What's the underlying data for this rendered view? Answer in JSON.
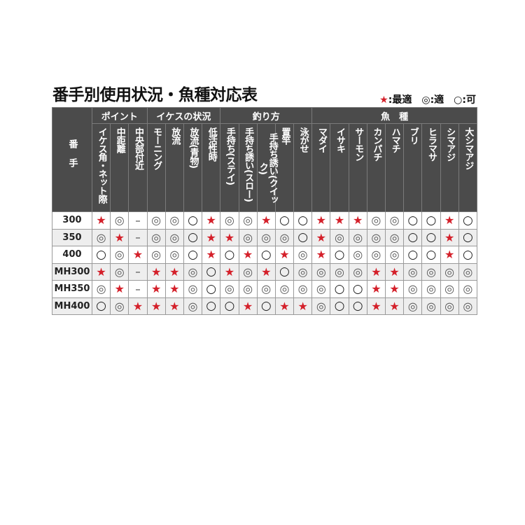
{
  "title": "番手別使用状況・魚種対応表",
  "legend": [
    {
      "symbol": "★",
      "label": ":最適"
    },
    {
      "symbol": "◎",
      "label": ":適"
    },
    {
      "symbol": "○",
      "label": ":可"
    }
  ],
  "colors": {
    "star": "#d4202a",
    "header_bg": "#4b4b4b",
    "alt_row": "#eeeeee"
  },
  "corner_label": "番手",
  "groups": [
    {
      "label": "ポイント",
      "columns": [
        "イケス角・ネット際",
        "中距離",
        "中央部付近"
      ]
    },
    {
      "label": "イケスの状況",
      "columns": [
        "モーニング",
        "放流",
        "放流(青物)",
        "低活性時"
      ]
    },
    {
      "label": "釣り方",
      "columns": [
        "手持ち(ステイ)",
        "手持ち誘い(スロー)",
        "手持ち誘い(クイック)",
        "置竿",
        "泳がせ"
      ]
    },
    {
      "label": "魚　種",
      "columns": [
        "マダイ",
        "イサキ",
        "サーモン",
        "カンパチ",
        "ハマチ",
        "ブリ",
        "ヒラマサ",
        "シマアジ",
        "大シマアジ"
      ]
    }
  ],
  "rows": [
    {
      "model": "300",
      "values": [
        "★",
        "◎",
        "–",
        "◎",
        "◎",
        "○",
        "★",
        "◎",
        "◎",
        "★",
        "○",
        "○",
        "★",
        "★",
        "★",
        "◎",
        "◎",
        "○",
        "○",
        "★",
        "○"
      ]
    },
    {
      "model": "350",
      "values": [
        "◎",
        "★",
        "–",
        "◎",
        "◎",
        "○",
        "★",
        "★",
        "◎",
        "◎",
        "◎",
        "○",
        "★",
        "◎",
        "◎",
        "◎",
        "◎",
        "○",
        "○",
        "★",
        "○"
      ]
    },
    {
      "model": "400",
      "values": [
        "○",
        "◎",
        "★",
        "◎",
        "◎",
        "○",
        "★",
        "○",
        "★",
        "○",
        "★",
        "◎",
        "★",
        "○",
        "◎",
        "◎",
        "◎",
        "○",
        "○",
        "★",
        "○"
      ]
    },
    {
      "model": "MH300",
      "values": [
        "★",
        "◎",
        "–",
        "★",
        "★",
        "◎",
        "○",
        "★",
        "◎",
        "★",
        "○",
        "◎",
        "◎",
        "◎",
        "◎",
        "★",
        "★",
        "◎",
        "◎",
        "◎",
        "◎"
      ]
    },
    {
      "model": "MH350",
      "values": [
        "◎",
        "★",
        "–",
        "★",
        "★",
        "◎",
        "○",
        "◎",
        "◎",
        "◎",
        "◎",
        "◎",
        "◎",
        "○",
        "○",
        "★",
        "★",
        "◎",
        "◎",
        "◎",
        "◎"
      ]
    },
    {
      "model": "MH400",
      "values": [
        "○",
        "◎",
        "★",
        "★",
        "★",
        "◎",
        "○",
        "○",
        "★",
        "○",
        "★",
        "★",
        "◎",
        "○",
        "○",
        "★",
        "★",
        "◎",
        "◎",
        "◎",
        "◎"
      ]
    }
  ]
}
